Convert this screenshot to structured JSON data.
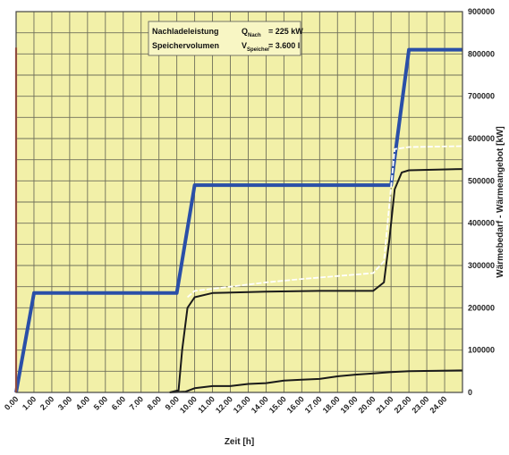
{
  "chart_data": {
    "type": "line",
    "xlabel": "Zeit [h]",
    "ylabel": "Wärmebedarf - Wärmeangebot [kW]",
    "xlim": [
      0,
      25
    ],
    "ylim": [
      0,
      900000
    ],
    "x_tick_labels": [
      "0.00",
      "1.00",
      "2.00",
      "3.00",
      "4.00",
      "5.00",
      "6.00",
      "7.00",
      "8.00",
      "9.00",
      "10.00",
      "11.00",
      "12.00",
      "13.00",
      "14.00",
      "15.00",
      "16.00",
      "17.00",
      "18.00",
      "19.00",
      "20.00",
      "21.00",
      "22.00",
      "23.00",
      "24.00"
    ],
    "y_ticks": [
      0,
      100000,
      200000,
      300000,
      400000,
      500000,
      600000,
      700000,
      800000,
      900000
    ],
    "y_tick_labels": [
      "0",
      "100000",
      "200000",
      "300000",
      "400000",
      "500000",
      "600000",
      "700000",
      "800000",
      "900000"
    ],
    "grid": true,
    "annotation": {
      "row1_label": "Nachladeleistung",
      "row1_symbol": "Q",
      "row1_subscript": "Nach",
      "row1_value": "= 225 kW",
      "row2_label": "Speichervolumen",
      "row2_symbol": "V",
      "row2_subscript": "Speicher",
      "row2_value": "= 3.600 l"
    },
    "series": [
      {
        "color": "#2a4fa8",
        "x": [
          0,
          1,
          9,
          10,
          21,
          22,
          25
        ],
        "y": [
          0,
          235000,
          235000,
          490000,
          490000,
          810000,
          810000
        ]
      },
      {
        "color": "#1a1a1a",
        "x": [
          8.6,
          9.1,
          9.3,
          9.6,
          10,
          11,
          14,
          17,
          20,
          20.6,
          20.9,
          21.2,
          21.6,
          22,
          25
        ],
        "y": [
          0,
          5000,
          100000,
          200000,
          225000,
          235000,
          238000,
          240000,
          240000,
          260000,
          360000,
          480000,
          520000,
          525000,
          528000
        ]
      },
      {
        "color": "#1a1a1a",
        "x": [
          8.6,
          9.5,
          10,
          11,
          12,
          13,
          14,
          15,
          16,
          17,
          18,
          19,
          20,
          21,
          22,
          25
        ],
        "y": [
          0,
          2000,
          10000,
          15000,
          15000,
          20000,
          22000,
          28000,
          30000,
          32000,
          38000,
          42000,
          45000,
          48000,
          50000,
          52000
        ]
      },
      {
        "color": "#ffffff",
        "x": [
          9.6,
          10,
          12,
          14,
          16,
          18,
          20,
          20.6,
          21.2,
          22,
          25
        ],
        "y": [
          225000,
          240000,
          250000,
          260000,
          268000,
          275000,
          282000,
          310000,
          575000,
          580000,
          582000
        ]
      },
      {
        "color": "#ff5a3c",
        "x": [
          0,
          0
        ],
        "y": [
          0,
          815000
        ]
      }
    ]
  }
}
